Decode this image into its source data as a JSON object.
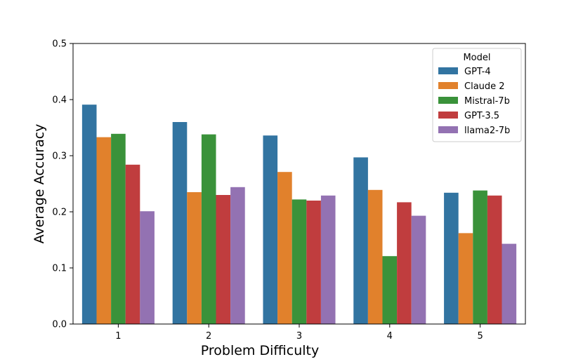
{
  "chart_data": {
    "type": "bar",
    "xlabel": "Problem Difficulty",
    "ylabel": "Average Accuracy",
    "categories": [
      "1",
      "2",
      "3",
      "4",
      "5"
    ],
    "ylim": [
      0,
      0.5
    ],
    "yticks": [
      "0.0",
      "0.1",
      "0.2",
      "0.3",
      "0.4",
      "0.5"
    ],
    "grid": false,
    "legend": {
      "title": "Model",
      "placement": "top-right"
    },
    "series": [
      {
        "name": "GPT-4",
        "color": "#3274a1",
        "values": [
          0.391,
          0.36,
          0.336,
          0.297,
          0.234
        ]
      },
      {
        "name": "Claude 2",
        "color": "#e1812c",
        "values": [
          0.333,
          0.235,
          0.271,
          0.239,
          0.162
        ]
      },
      {
        "name": "Mistral-7b",
        "color": "#3a923a",
        "values": [
          0.339,
          0.338,
          0.222,
          0.121,
          0.238
        ]
      },
      {
        "name": "GPT-3.5",
        "color": "#c03d3e",
        "values": [
          0.284,
          0.23,
          0.22,
          0.217,
          0.229
        ]
      },
      {
        "name": "llama2-7b",
        "color": "#9372b2",
        "values": [
          0.201,
          0.244,
          0.229,
          0.193,
          0.143
        ]
      }
    ]
  }
}
